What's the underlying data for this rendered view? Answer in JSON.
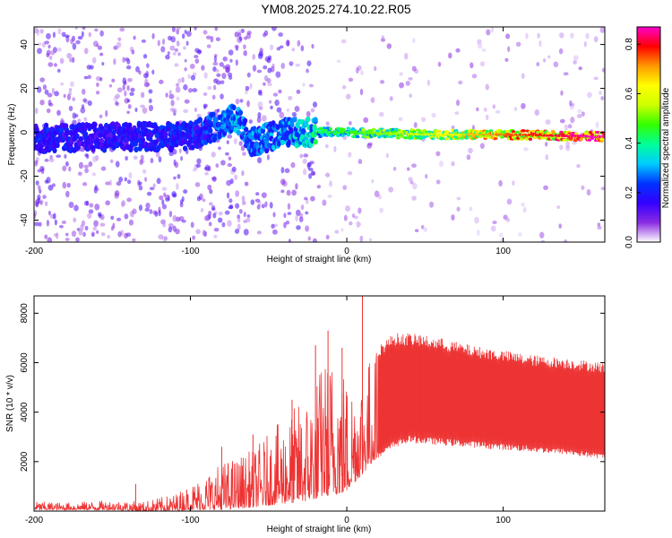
{
  "title": "YM08.2025.274.10.22.R05",
  "chart_data": [
    {
      "type": "heatmap",
      "xlabel": "Height of straight line (km)",
      "ylabel": "Frequency (Hz)",
      "xlim": [
        -200,
        165
      ],
      "ylim": [
        -50,
        48
      ],
      "xticks": [
        -200,
        -100,
        0,
        100
      ],
      "yticks": [
        -40,
        -20,
        0,
        20,
        40
      ],
      "grid": false,
      "colorbar": {
        "label": "Normalized spectral amplitude",
        "range": [
          0,
          0.87
        ],
        "ticks": [
          0.0,
          0.2,
          0.4,
          0.6,
          0.8
        ],
        "colormap": [
          "#ffffff",
          "#8a2be2",
          "#3300ff",
          "#0033ff",
          "#00ccff",
          "#00ff99",
          "#33ff00",
          "#ccff00",
          "#ffff00",
          "#ff9900",
          "#ff0000",
          "#ff00cc"
        ]
      },
      "ridge": [
        {
          "x": -200,
          "freq": -3,
          "amp": 0.22
        },
        {
          "x": -150,
          "freq": -2,
          "amp": 0.2
        },
        {
          "x": -100,
          "freq": -2,
          "amp": 0.22
        },
        {
          "x": -70,
          "freq": 7,
          "amp": 0.3
        },
        {
          "x": -62,
          "freq": -5,
          "amp": 0.28
        },
        {
          "x": -40,
          "freq": 0,
          "amp": 0.3
        },
        {
          "x": -20,
          "freq": 0,
          "amp": 0.4
        },
        {
          "x": 0,
          "freq": 0,
          "amp": 0.45
        },
        {
          "x": 50,
          "freq": -1,
          "amp": 0.55
        },
        {
          "x": 100,
          "freq": -1,
          "amp": 0.7
        },
        {
          "x": 165,
          "freq": -2,
          "amp": 0.85
        }
      ]
    },
    {
      "type": "line",
      "xlabel": "Height of straight line (km)",
      "ylabel": "SNR (10 * v/v)",
      "xlim": [
        -200,
        165
      ],
      "ylim": [
        0,
        8700
      ],
      "xticks": [
        -200,
        -100,
        0,
        100
      ],
      "yticks": [
        2000,
        4000,
        6000,
        8000
      ],
      "grid": false,
      "color": "#ee3333",
      "envelope": {
        "x": [
          -200,
          -180,
          -150,
          -130,
          -110,
          -100,
          -80,
          -60,
          -40,
          -25,
          -15,
          -5,
          0,
          10,
          20,
          30,
          40,
          60,
          80,
          100,
          120,
          140,
          165
        ],
        "upper": [
          400,
          350,
          450,
          400,
          700,
          1100,
          2000,
          2500,
          3800,
          4800,
          6200,
          6800,
          5500,
          6000,
          6700,
          7200,
          7200,
          7000,
          6700,
          6500,
          6300,
          6200,
          6000
        ],
        "lower": [
          50,
          50,
          50,
          0,
          0,
          50,
          50,
          150,
          300,
          400,
          600,
          700,
          800,
          1500,
          2200,
          2700,
          2900,
          2800,
          2700,
          2600,
          2500,
          2400,
          2200
        ]
      },
      "spikes": [
        {
          "x": -135,
          "y": 1100
        },
        {
          "x": -80,
          "y": 2600
        },
        {
          "x": -60,
          "y": 3100
        },
        {
          "x": -35,
          "y": 4500
        },
        {
          "x": -20,
          "y": 6700
        },
        {
          "x": -12,
          "y": 7300
        },
        {
          "x": -3,
          "y": 6600
        },
        {
          "x": 10,
          "y": 8700
        },
        {
          "x": 47,
          "y": 7100
        }
      ]
    }
  ]
}
